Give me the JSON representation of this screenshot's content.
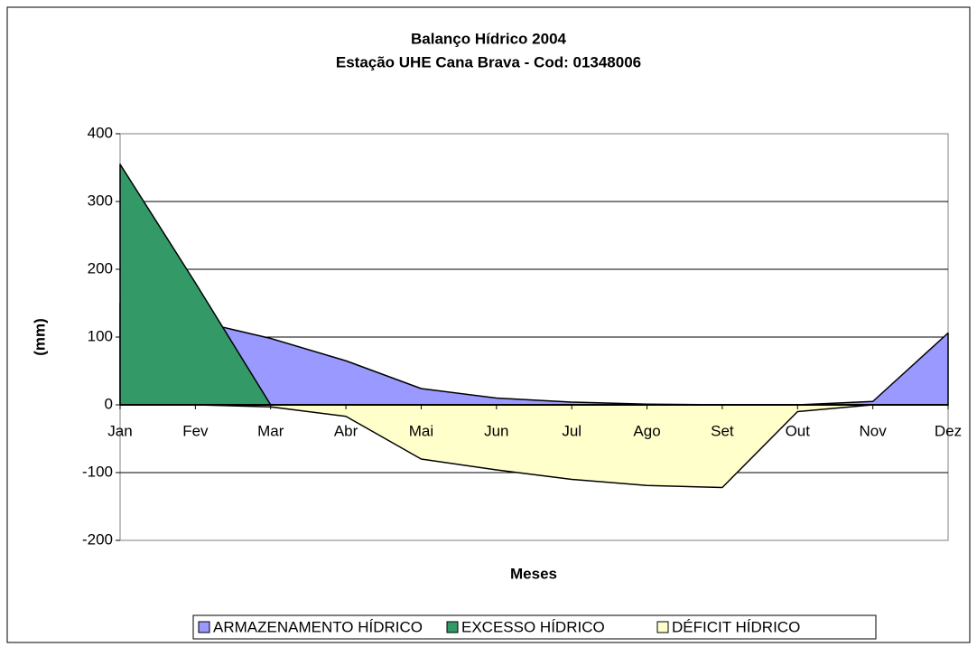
{
  "chart_data": {
    "type": "area",
    "title": "Balanço Hídrico 2004",
    "subtitle": "Estação UHE Cana Brava - Cod: 01348006",
    "x_label": "Meses",
    "y_label": "(mm)",
    "categories": [
      "Jan",
      "Fev",
      "Mar",
      "Abr",
      "Mai",
      "Jun",
      "Jul",
      "Ago",
      "Set",
      "Out",
      "Nov",
      "Dez"
    ],
    "series": [
      {
        "name": "ARMAZENAMENTO HÍDRICO",
        "color": "#9999ff",
        "values": [
          150,
          124,
          98,
          65,
          24,
          10,
          4,
          1,
          0,
          0,
          5,
          106
        ]
      },
      {
        "name": "EXCESSO HÍDRICO",
        "color": "#339966",
        "values": [
          355,
          180,
          0,
          0,
          0,
          0,
          0,
          0,
          0,
          0,
          0,
          0
        ]
      },
      {
        "name": "DÉFICIT HÍDRICO",
        "color": "#ffffcc",
        "values": [
          0,
          0,
          -3,
          -17,
          -80,
          -96,
          -110,
          -119,
          -122,
          -10,
          0,
          0
        ]
      }
    ],
    "ylim": [
      -200,
      400
    ],
    "yticks": [
      -200,
      -100,
      0,
      100,
      200,
      300,
      400
    ],
    "grid": true,
    "legend": "bottom"
  }
}
